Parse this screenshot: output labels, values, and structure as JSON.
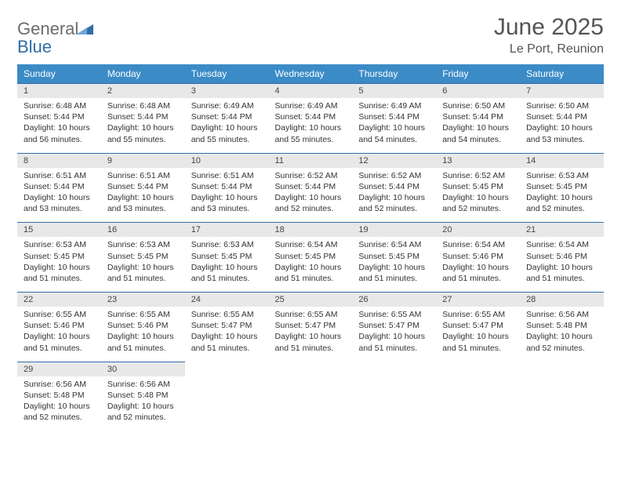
{
  "logo": {
    "general": "General",
    "blue": "Blue"
  },
  "title": "June 2025",
  "subtitle": "Le Port, Reunion",
  "colors": {
    "header_bg": "#3b8bc6",
    "header_text": "#ffffff",
    "week_border": "#2f6ea8",
    "daynum_bg": "#e8e8e8",
    "text": "#333333",
    "title_text": "#555555"
  },
  "dow": [
    "Sunday",
    "Monday",
    "Tuesday",
    "Wednesday",
    "Thursday",
    "Friday",
    "Saturday"
  ],
  "weeks": [
    [
      {
        "n": "1",
        "sr": "6:48 AM",
        "ss": "5:44 PM",
        "dl": "10 hours and 56 minutes."
      },
      {
        "n": "2",
        "sr": "6:48 AM",
        "ss": "5:44 PM",
        "dl": "10 hours and 55 minutes."
      },
      {
        "n": "3",
        "sr": "6:49 AM",
        "ss": "5:44 PM",
        "dl": "10 hours and 55 minutes."
      },
      {
        "n": "4",
        "sr": "6:49 AM",
        "ss": "5:44 PM",
        "dl": "10 hours and 55 minutes."
      },
      {
        "n": "5",
        "sr": "6:49 AM",
        "ss": "5:44 PM",
        "dl": "10 hours and 54 minutes."
      },
      {
        "n": "6",
        "sr": "6:50 AM",
        "ss": "5:44 PM",
        "dl": "10 hours and 54 minutes."
      },
      {
        "n": "7",
        "sr": "6:50 AM",
        "ss": "5:44 PM",
        "dl": "10 hours and 53 minutes."
      }
    ],
    [
      {
        "n": "8",
        "sr": "6:51 AM",
        "ss": "5:44 PM",
        "dl": "10 hours and 53 minutes."
      },
      {
        "n": "9",
        "sr": "6:51 AM",
        "ss": "5:44 PM",
        "dl": "10 hours and 53 minutes."
      },
      {
        "n": "10",
        "sr": "6:51 AM",
        "ss": "5:44 PM",
        "dl": "10 hours and 53 minutes."
      },
      {
        "n": "11",
        "sr": "6:52 AM",
        "ss": "5:44 PM",
        "dl": "10 hours and 52 minutes."
      },
      {
        "n": "12",
        "sr": "6:52 AM",
        "ss": "5:44 PM",
        "dl": "10 hours and 52 minutes."
      },
      {
        "n": "13",
        "sr": "6:52 AM",
        "ss": "5:45 PM",
        "dl": "10 hours and 52 minutes."
      },
      {
        "n": "14",
        "sr": "6:53 AM",
        "ss": "5:45 PM",
        "dl": "10 hours and 52 minutes."
      }
    ],
    [
      {
        "n": "15",
        "sr": "6:53 AM",
        "ss": "5:45 PM",
        "dl": "10 hours and 51 minutes."
      },
      {
        "n": "16",
        "sr": "6:53 AM",
        "ss": "5:45 PM",
        "dl": "10 hours and 51 minutes."
      },
      {
        "n": "17",
        "sr": "6:53 AM",
        "ss": "5:45 PM",
        "dl": "10 hours and 51 minutes."
      },
      {
        "n": "18",
        "sr": "6:54 AM",
        "ss": "5:45 PM",
        "dl": "10 hours and 51 minutes."
      },
      {
        "n": "19",
        "sr": "6:54 AM",
        "ss": "5:45 PM",
        "dl": "10 hours and 51 minutes."
      },
      {
        "n": "20",
        "sr": "6:54 AM",
        "ss": "5:46 PM",
        "dl": "10 hours and 51 minutes."
      },
      {
        "n": "21",
        "sr": "6:54 AM",
        "ss": "5:46 PM",
        "dl": "10 hours and 51 minutes."
      }
    ],
    [
      {
        "n": "22",
        "sr": "6:55 AM",
        "ss": "5:46 PM",
        "dl": "10 hours and 51 minutes."
      },
      {
        "n": "23",
        "sr": "6:55 AM",
        "ss": "5:46 PM",
        "dl": "10 hours and 51 minutes."
      },
      {
        "n": "24",
        "sr": "6:55 AM",
        "ss": "5:47 PM",
        "dl": "10 hours and 51 minutes."
      },
      {
        "n": "25",
        "sr": "6:55 AM",
        "ss": "5:47 PM",
        "dl": "10 hours and 51 minutes."
      },
      {
        "n": "26",
        "sr": "6:55 AM",
        "ss": "5:47 PM",
        "dl": "10 hours and 51 minutes."
      },
      {
        "n": "27",
        "sr": "6:55 AM",
        "ss": "5:47 PM",
        "dl": "10 hours and 51 minutes."
      },
      {
        "n": "28",
        "sr": "6:56 AM",
        "ss": "5:48 PM",
        "dl": "10 hours and 52 minutes."
      }
    ],
    [
      {
        "n": "29",
        "sr": "6:56 AM",
        "ss": "5:48 PM",
        "dl": "10 hours and 52 minutes."
      },
      {
        "n": "30",
        "sr": "6:56 AM",
        "ss": "5:48 PM",
        "dl": "10 hours and 52 minutes."
      },
      null,
      null,
      null,
      null,
      null
    ]
  ],
  "labels": {
    "sunrise_prefix": "Sunrise: ",
    "sunset_prefix": "Sunset: ",
    "daylight_prefix": "Daylight: "
  }
}
